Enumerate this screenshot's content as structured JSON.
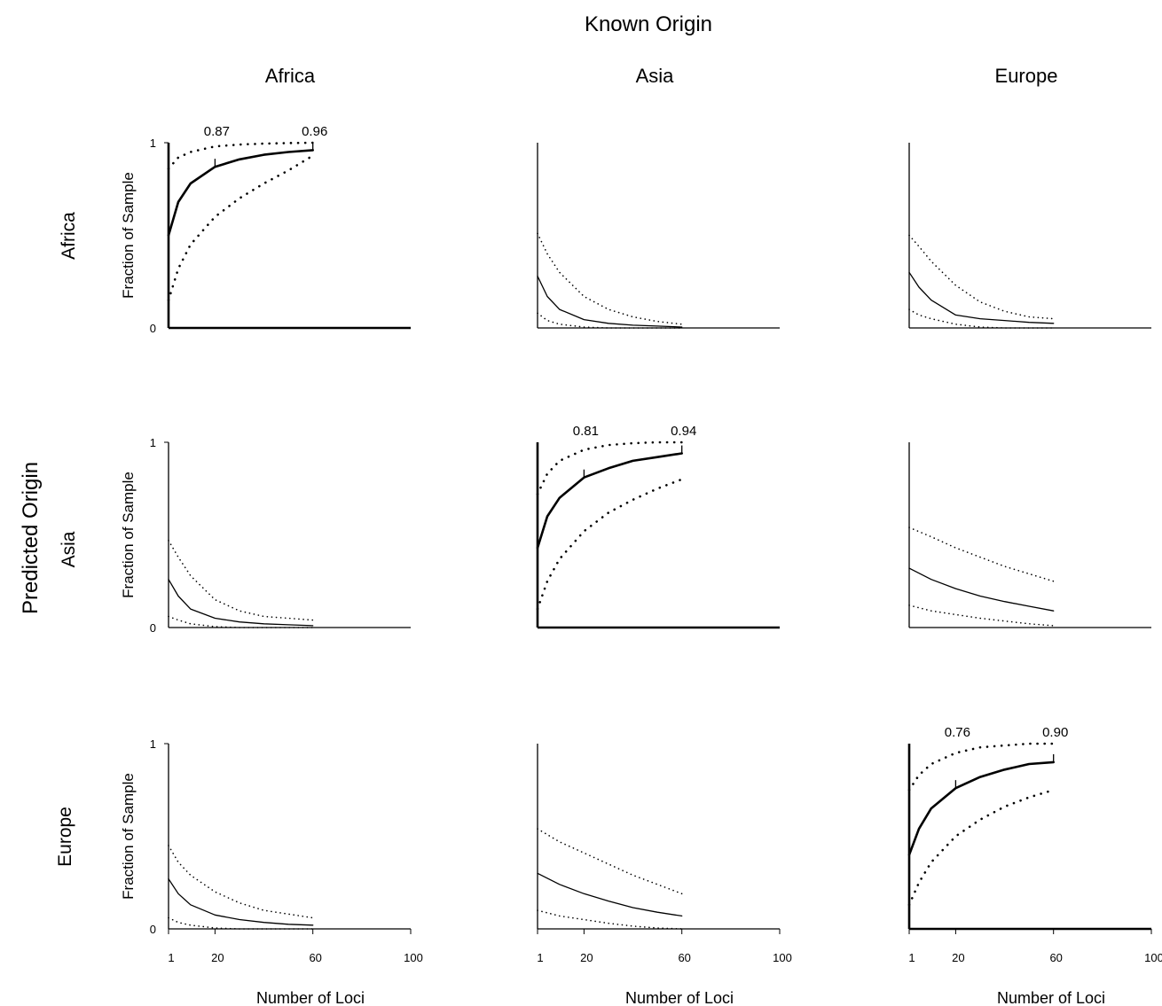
{
  "figure": {
    "title": "Known Origin",
    "row_axis_title": "Predicted Origin",
    "columns": [
      "Africa",
      "Asia",
      "Europe"
    ],
    "rows": [
      "Africa",
      "Asia",
      "Europe"
    ],
    "y_axis_label": "Fraction of Sample",
    "x_axis_label": "Number of Loci",
    "y_tick_labels": [
      "0",
      "1"
    ],
    "x_tick_labels": [
      "1",
      "20",
      "60",
      "100"
    ]
  },
  "chart_data": [
    {
      "type": "line",
      "row": "Africa",
      "column": "Africa",
      "xlim": [
        1,
        100
      ],
      "ylim": [
        0,
        1
      ],
      "x": [
        1,
        5,
        10,
        20,
        30,
        40,
        50,
        60
      ],
      "series": [
        {
          "style": "bold",
          "values": [
            0.5,
            0.68,
            0.78,
            0.87,
            0.91,
            0.935,
            0.95,
            0.96
          ]
        },
        {
          "style": "dotted-upper",
          "values": [
            0.86,
            0.92,
            0.95,
            0.98,
            0.99,
            0.995,
            0.998,
            1.0
          ]
        },
        {
          "style": "dotted-lower",
          "values": [
            0.15,
            0.32,
            0.45,
            0.6,
            0.7,
            0.78,
            0.85,
            0.93
          ]
        }
      ],
      "annotations": [
        {
          "x": 20,
          "y": 0.87,
          "text": "0.87"
        },
        {
          "x": 60,
          "y": 0.96,
          "text": "0.96"
        }
      ]
    },
    {
      "type": "line",
      "row": "Africa",
      "column": "Asia",
      "xlim": [
        1,
        100
      ],
      "ylim": [
        0,
        1
      ],
      "x": [
        1,
        5,
        10,
        20,
        30,
        40,
        50,
        60
      ],
      "series": [
        {
          "style": "solid",
          "values": [
            0.28,
            0.17,
            0.1,
            0.045,
            0.025,
            0.015,
            0.01,
            0.005
          ]
        },
        {
          "style": "dotted-upper",
          "values": [
            0.51,
            0.4,
            0.3,
            0.17,
            0.1,
            0.06,
            0.035,
            0.02
          ]
        },
        {
          "style": "dotted-lower",
          "values": [
            0.08,
            0.04,
            0.02,
            0.005,
            0.0,
            0.0,
            0.0,
            0.0
          ]
        }
      ]
    },
    {
      "type": "line",
      "row": "Africa",
      "column": "Europe",
      "xlim": [
        1,
        100
      ],
      "ylim": [
        0,
        1
      ],
      "x": [
        1,
        5,
        10,
        20,
        30,
        40,
        50,
        60
      ],
      "series": [
        {
          "style": "solid",
          "values": [
            0.3,
            0.22,
            0.15,
            0.07,
            0.05,
            0.04,
            0.03,
            0.025
          ]
        },
        {
          "style": "dotted-upper",
          "values": [
            0.5,
            0.44,
            0.36,
            0.23,
            0.14,
            0.09,
            0.06,
            0.05
          ]
        },
        {
          "style": "dotted-lower",
          "values": [
            0.1,
            0.07,
            0.05,
            0.02,
            0.005,
            0.0,
            0.0,
            0.0
          ]
        }
      ]
    },
    {
      "type": "line",
      "row": "Asia",
      "column": "Africa",
      "xlim": [
        1,
        100
      ],
      "ylim": [
        0,
        1
      ],
      "x": [
        1,
        5,
        10,
        20,
        30,
        40,
        50,
        60
      ],
      "series": [
        {
          "style": "solid",
          "values": [
            0.26,
            0.17,
            0.1,
            0.05,
            0.03,
            0.02,
            0.015,
            0.01
          ]
        },
        {
          "style": "dotted-upper",
          "values": [
            0.47,
            0.38,
            0.28,
            0.15,
            0.09,
            0.06,
            0.05,
            0.04
          ]
        },
        {
          "style": "dotted-lower",
          "values": [
            0.06,
            0.04,
            0.02,
            0.005,
            0.0,
            0.0,
            0.0,
            0.0
          ]
        }
      ]
    },
    {
      "type": "line",
      "row": "Asia",
      "column": "Asia",
      "xlim": [
        1,
        100
      ],
      "ylim": [
        0,
        1
      ],
      "x": [
        1,
        5,
        10,
        20,
        30,
        40,
        50,
        60
      ],
      "series": [
        {
          "style": "bold",
          "values": [
            0.43,
            0.6,
            0.7,
            0.81,
            0.86,
            0.9,
            0.92,
            0.94
          ]
        },
        {
          "style": "dotted-upper",
          "values": [
            0.72,
            0.83,
            0.9,
            0.96,
            0.985,
            0.995,
            1.0,
            1.0
          ]
        },
        {
          "style": "dotted-lower",
          "values": [
            0.1,
            0.25,
            0.37,
            0.52,
            0.62,
            0.69,
            0.75,
            0.8
          ]
        }
      ],
      "annotations": [
        {
          "x": 20,
          "y": 0.81,
          "text": "0.81"
        },
        {
          "x": 60,
          "y": 0.94,
          "text": "0.94"
        }
      ]
    },
    {
      "type": "line",
      "row": "Asia",
      "column": "Europe",
      "xlim": [
        1,
        100
      ],
      "ylim": [
        0,
        1
      ],
      "x": [
        1,
        10,
        20,
        30,
        40,
        50,
        60
      ],
      "series": [
        {
          "style": "solid",
          "values": [
            0.32,
            0.26,
            0.21,
            0.17,
            0.14,
            0.115,
            0.09
          ]
        },
        {
          "style": "dotted-upper",
          "values": [
            0.54,
            0.49,
            0.43,
            0.38,
            0.33,
            0.29,
            0.25
          ]
        },
        {
          "style": "dotted-lower",
          "values": [
            0.12,
            0.09,
            0.07,
            0.05,
            0.035,
            0.02,
            0.01
          ]
        }
      ]
    },
    {
      "type": "line",
      "row": "Europe",
      "column": "Africa",
      "xlim": [
        1,
        100
      ],
      "ylim": [
        0,
        1
      ],
      "x": [
        1,
        5,
        10,
        20,
        30,
        40,
        50,
        60
      ],
      "series": [
        {
          "style": "solid",
          "values": [
            0.27,
            0.19,
            0.13,
            0.075,
            0.05,
            0.035,
            0.025,
            0.02
          ]
        },
        {
          "style": "dotted-upper",
          "values": [
            0.45,
            0.36,
            0.29,
            0.2,
            0.14,
            0.1,
            0.08,
            0.06
          ]
        },
        {
          "style": "dotted-lower",
          "values": [
            0.06,
            0.035,
            0.02,
            0.005,
            0.0,
            0.0,
            0.0,
            0.0
          ]
        }
      ]
    },
    {
      "type": "line",
      "row": "Europe",
      "column": "Asia",
      "xlim": [
        1,
        100
      ],
      "ylim": [
        0,
        1
      ],
      "x": [
        1,
        10,
        20,
        30,
        40,
        50,
        60
      ],
      "series": [
        {
          "style": "solid",
          "values": [
            0.3,
            0.24,
            0.19,
            0.15,
            0.115,
            0.09,
            0.07
          ]
        },
        {
          "style": "dotted-upper",
          "values": [
            0.54,
            0.47,
            0.41,
            0.35,
            0.29,
            0.24,
            0.19
          ]
        },
        {
          "style": "dotted-lower",
          "values": [
            0.1,
            0.07,
            0.05,
            0.03,
            0.015,
            0.005,
            0.0
          ]
        }
      ]
    },
    {
      "type": "line",
      "row": "Europe",
      "column": "Europe",
      "xlim": [
        1,
        100
      ],
      "ylim": [
        0,
        1
      ],
      "x": [
        1,
        5,
        10,
        20,
        30,
        40,
        50,
        60
      ],
      "series": [
        {
          "style": "bold",
          "values": [
            0.4,
            0.54,
            0.65,
            0.76,
            0.82,
            0.86,
            0.89,
            0.9
          ]
        },
        {
          "style": "dotted-upper",
          "values": [
            0.75,
            0.83,
            0.89,
            0.95,
            0.98,
            0.99,
            1.0,
            1.0
          ]
        },
        {
          "style": "dotted-lower",
          "values": [
            0.13,
            0.25,
            0.36,
            0.5,
            0.59,
            0.66,
            0.71,
            0.75
          ]
        }
      ],
      "annotations": [
        {
          "x": 20,
          "y": 0.76,
          "text": "0.76"
        },
        {
          "x": 60,
          "y": 0.9,
          "text": "0.90"
        }
      ]
    }
  ]
}
